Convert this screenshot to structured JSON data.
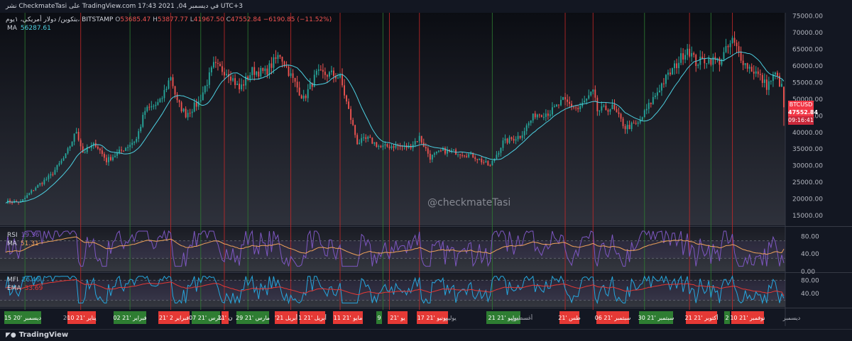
{
  "header": {
    "publish_line": "نشر CheckmateTasi على TradingView.com 17:43 2021 ,04 في ديسمبر UTC+3",
    "symbol_line": "بتكوين/ دولار أمريكي، ١يوم، BITSTAMP",
    "ohlc": {
      "o_label": "O",
      "o_value": "53685.47",
      "h_label": "H",
      "h_value": "53877.77",
      "l_label": "L",
      "l_value": "41967.50",
      "c_label": "C",
      "c_value": "47552.84",
      "change": "−6190.85 (−11.52%)"
    },
    "ma_label": "MA",
    "ma_value": "56287.61"
  },
  "price_tag": {
    "symbol": "BTCUSD",
    "price": "47552.84",
    "countdown": "09:16:41"
  },
  "rsi": {
    "label": "RSI",
    "value": "19.36",
    "ma_label": "MA",
    "ma_value": "51.31",
    "color": "#7e57c2",
    "ma_color": "#f0a35a"
  },
  "mfi": {
    "label": "MFI",
    "value": "26.46",
    "ema_label": "EMA",
    "ema_value": "33.69",
    "color": "#26a7de",
    "ema_color": "#e53935"
  },
  "price_axis_labels": [
    "75000.00",
    "70000.00",
    "65000.00",
    "60000.00",
    "55000.00",
    "50000.00",
    "45000.00",
    "40000.00",
    "35000.00",
    "30000.00",
    "25000.00",
    "20000.00",
    "15000.00"
  ],
  "rsi_axis_labels": [
    "80.00",
    "40.00",
    "0.00"
  ],
  "mfi_axis_labels": [
    "80.00",
    "40.00"
  ],
  "date_labels": [
    {
      "text": "15 ديسمبر '20",
      "type": "green"
    },
    {
      "text": "2021",
      "type": "plain"
    },
    {
      "text": "10 يناير '21",
      "type": "red"
    },
    {
      "text": "02 فبراير '21",
      "type": "green"
    },
    {
      "text": "21' فبراير 2",
      "type": "red"
    },
    {
      "text": "07 مارس '21",
      "type": "green"
    },
    {
      "text": "ن '21",
      "type": "red"
    },
    {
      "text": "29 مارس '21",
      "type": "green"
    },
    {
      "text": "'21 أبريل",
      "type": "red"
    },
    {
      "text": "1 أبريل '21",
      "type": "red"
    },
    {
      "text": "11 مايو '21",
      "type": "red"
    },
    {
      "text": "9",
      "type": "green"
    },
    {
      "text": "يو '21",
      "type": "red"
    },
    {
      "text": "17 يونيو '21",
      "type": "red"
    },
    {
      "text": "يوليو",
      "type": "plain"
    },
    {
      "text": "21 يوليو '21",
      "type": "green"
    },
    {
      "text": "أغسطس",
      "type": "plain"
    },
    {
      "text": "طس '21",
      "type": "red"
    },
    {
      "text": "06 سبتمبر '21",
      "type": "red"
    },
    {
      "text": "30 سبتمبر '21",
      "type": "green"
    },
    {
      "text": "21 أكتوبر '21",
      "type": "red"
    },
    {
      "text": "2",
      "type": "green"
    },
    {
      "text": "10 نوفمبر '21",
      "type": "red"
    },
    {
      "text": "ديسمبر",
      "type": "plain"
    }
  ],
  "watermark": "@checkmateTasi",
  "footer": {
    "brand": "TradingView",
    "logo": "tradingview-logo-icon"
  },
  "colors": {
    "background": "#131722",
    "up": "#26a69a",
    "down": "#ef5350",
    "ma_line": "#4dd0e1",
    "green_marker": "#2e7d32",
    "red_marker": "#c62828"
  },
  "chart_data": {
    "type": "candlestick",
    "x_range": [
      "2020-12-06",
      "2021-12-04"
    ],
    "ylim": [
      12000,
      76000
    ],
    "y_ticks": [
      15000,
      20000,
      25000,
      30000,
      35000,
      40000,
      45000,
      50000,
      55000,
      60000,
      65000,
      70000,
      75000
    ],
    "price_path": [
      [
        "2020-12-06",
        19200
      ],
      [
        "2020-12-13",
        19000
      ],
      [
        "2020-12-20",
        23500
      ],
      [
        "2020-12-27",
        27000
      ],
      [
        "2021-01-03",
        33000
      ],
      [
        "2021-01-08",
        40500
      ],
      [
        "2021-01-11",
        34000
      ],
      [
        "2021-01-17",
        36500
      ],
      [
        "2021-01-22",
        31500
      ],
      [
        "2021-01-29",
        34500
      ],
      [
        "2021-02-05",
        38000
      ],
      [
        "2021-02-09",
        46500
      ],
      [
        "2021-02-16",
        49000
      ],
      [
        "2021-02-21",
        57000
      ],
      [
        "2021-02-24",
        49000
      ],
      [
        "2021-02-28",
        45500
      ],
      [
        "2021-03-06",
        49000
      ],
      [
        "2021-03-13",
        60000
      ],
      [
        "2021-03-20",
        58000
      ],
      [
        "2021-03-25",
        53000
      ],
      [
        "2021-03-31",
        58500
      ],
      [
        "2021-04-06",
        58000
      ],
      [
        "2021-04-13",
        63500
      ],
      [
        "2021-04-18",
        57000
      ],
      [
        "2021-04-24",
        50000
      ],
      [
        "2021-04-30",
        57500
      ],
      [
        "2021-05-07",
        57500
      ],
      [
        "2021-05-11",
        56500
      ],
      [
        "2021-05-15",
        46500
      ],
      [
        "2021-05-19",
        37000
      ],
      [
        "2021-05-24",
        38000
      ],
      [
        "2021-05-30",
        35500
      ],
      [
        "2021-06-05",
        36000
      ],
      [
        "2021-06-12",
        35500
      ],
      [
        "2021-06-17",
        38500
      ],
      [
        "2021-06-22",
        32500
      ],
      [
        "2021-06-28",
        34500
      ],
      [
        "2021-07-05",
        34000
      ],
      [
        "2021-07-12",
        33000
      ],
      [
        "2021-07-20",
        29800
      ],
      [
        "2021-07-26",
        37000
      ],
      [
        "2021-08-03",
        39000
      ],
      [
        "2021-08-10",
        45500
      ],
      [
        "2021-08-17",
        46000
      ],
      [
        "2021-08-23",
        49500
      ],
      [
        "2021-08-30",
        47000
      ],
      [
        "2021-09-06",
        52000
      ],
      [
        "2021-09-08",
        46500
      ],
      [
        "2021-09-15",
        47500
      ],
      [
        "2021-09-21",
        41500
      ],
      [
        "2021-09-27",
        42500
      ],
      [
        "2021-10-02",
        48000
      ],
      [
        "2021-10-08",
        54500
      ],
      [
        "2021-10-15",
        60500
      ],
      [
        "2021-10-20",
        65500
      ],
      [
        "2021-10-24",
        61000
      ],
      [
        "2021-10-29",
        62000
      ],
      [
        "2021-11-04",
        61500
      ],
      [
        "2021-11-10",
        67500
      ],
      [
        "2021-11-16",
        60500
      ],
      [
        "2021-11-21",
        58000
      ],
      [
        "2021-11-26",
        54000
      ],
      [
        "2021-11-30",
        57500
      ],
      [
        "2021-12-03",
        53500
      ],
      [
        "2021-12-04",
        47552.84
      ]
    ],
    "ma_current": 56287.61,
    "last_candle": {
      "o": 53685.47,
      "h": 53877.77,
      "l": 41967.5,
      "c": 47552.84
    },
    "rsi": {
      "ylim": [
        0,
        100
      ],
      "ticks": [
        0,
        40,
        80
      ],
      "last": 19.36,
      "ma_last": 51.31
    },
    "mfi": {
      "ylim": [
        0,
        100
      ],
      "ticks": [
        40,
        80
      ],
      "last": 26.46,
      "ema_last": 33.69
    },
    "signal_lines": {
      "red": [
        "2021-01-10",
        "2021-02-21",
        "2021-03-18",
        "2021-04-18",
        "2021-05-11",
        "2021-06-03",
        "2021-06-17",
        "2021-08-24",
        "2021-09-06",
        "2021-10-21",
        "2021-11-10"
      ],
      "green": [
        "2020-12-15",
        "2021-02-02",
        "2021-03-07",
        "2021-03-29",
        "2021-05-31",
        "2021-07-21",
        "2021-09-30",
        "2021-10-31"
      ]
    }
  }
}
